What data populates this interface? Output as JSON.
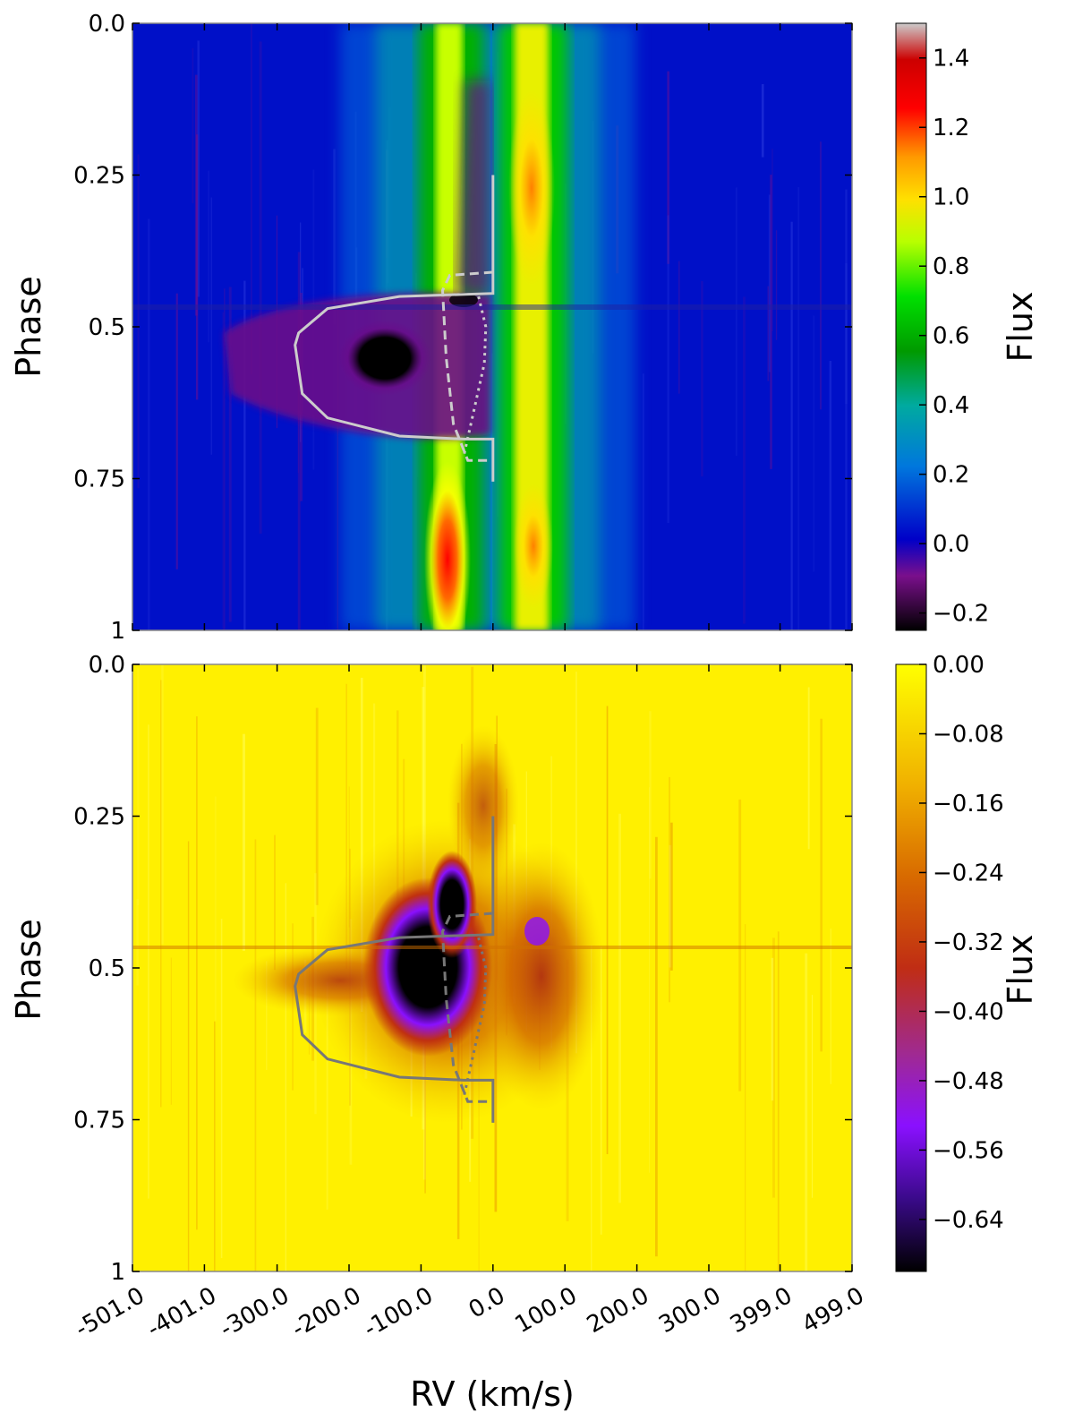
{
  "chart_data": [
    {
      "type": "heatmap",
      "colormap": "nipy_spectral",
      "xlabel": "",
      "ylabel": "Phase",
      "colorbar_label": "Flux",
      "x_range": [
        -501.0,
        499.0
      ],
      "y_range": [
        0.0,
        1.0
      ],
      "y_ticks": [
        0.0,
        0.25,
        0.5,
        0.75,
        1.0
      ],
      "y_tick_labels": [
        "0.0",
        "0.25",
        "0.5",
        "0.75",
        "1"
      ],
      "colorbar_range": [
        -0.25,
        1.5
      ],
      "colorbar_ticks": [
        -0.2,
        0.0,
        0.2,
        0.4,
        0.6,
        0.8,
        1.0,
        1.2,
        1.4
      ],
      "colorbar_tick_labels": [
        "−0.2",
        "0.0",
        "0.2",
        "0.4",
        "0.6",
        "0.8",
        "1.0",
        "1.2",
        "1.4"
      ],
      "background_flux": 0.02,
      "features": [
        {
          "kind": "stellar-line",
          "rv": -50,
          "width": 28,
          "flux": 0.95,
          "phase_range": [
            0.0,
            1.0
          ]
        },
        {
          "kind": "stellar-line",
          "rv": 50,
          "width": 28,
          "flux": 1.0,
          "phase_range": [
            0.0,
            1.0
          ]
        },
        {
          "kind": "emission-peak",
          "rv": -60,
          "phase": 0.88,
          "flux": 1.35
        },
        {
          "kind": "absorption",
          "rv": -120,
          "phase": 0.56,
          "flux": -0.25
        }
      ],
      "overlay_color": "#cccccc"
    },
    {
      "type": "heatmap",
      "colormap": "gnuplot",
      "xlabel": "RV (km/s)",
      "ylabel": "Phase",
      "colorbar_label": "Flux",
      "x_range": [
        -501.0,
        499.0
      ],
      "y_range": [
        0.0,
        1.0
      ],
      "x_ticks": [
        -501.0,
        -401.0,
        -300.0,
        -200.0,
        -100.0,
        0.0,
        100.0,
        200.0,
        300.0,
        399.0,
        499.0
      ],
      "x_tick_labels": [
        "-501.0",
        "-401.0",
        "-300.0",
        "-200.0",
        "-100.0",
        "0.0",
        "100.0",
        "200.0",
        "300.0",
        "399.0",
        "499.0"
      ],
      "y_ticks": [
        0.0,
        0.25,
        0.5,
        0.75,
        1.0
      ],
      "y_tick_labels": [
        "0.0",
        "0.25",
        "0.5",
        "0.75",
        "1"
      ],
      "colorbar_range": [
        -0.7,
        0.0
      ],
      "colorbar_ticks": [
        0.0,
        -0.08,
        -0.16,
        -0.24,
        -0.32,
        -0.4,
        -0.48,
        -0.56,
        -0.64
      ],
      "colorbar_tick_labels": [
        "0.00",
        "−0.08",
        "−0.16",
        "−0.24",
        "−0.32",
        "−0.40",
        "−0.48",
        "−0.56",
        "−0.64"
      ],
      "background_flux": -0.02,
      "features": [
        {
          "kind": "absorption-core",
          "rv": -90,
          "phase": 0.55,
          "flux": -0.7
        },
        {
          "kind": "absorption-halo",
          "rv": -60,
          "phase": 0.55,
          "flux": -0.3
        },
        {
          "kind": "absorption-red",
          "rv": 80,
          "phase": 0.55,
          "flux": -0.28
        }
      ],
      "overlay_color": "#777777"
    }
  ],
  "overlays": {
    "solid_tail": {
      "rv": [
        0,
        0,
        -130,
        -230,
        -270,
        -275,
        -265,
        -230,
        -130,
        -40,
        0,
        0
      ],
      "phase": [
        0.25,
        0.445,
        0.45,
        0.47,
        0.51,
        0.53,
        0.61,
        0.65,
        0.68,
        0.685,
        0.685,
        0.755
      ]
    },
    "dashed_planet": {
      "rv": [
        0,
        -60,
        -70,
        -65,
        -55,
        -35,
        0
      ],
      "phase": [
        0.41,
        0.415,
        0.44,
        0.55,
        0.66,
        0.72,
        0.72
      ]
    },
    "dotted_path": {
      "rv": [
        -20,
        -10,
        -12,
        -25,
        -40
      ],
      "phase": [
        0.45,
        0.5,
        0.56,
        0.63,
        0.71
      ]
    }
  }
}
